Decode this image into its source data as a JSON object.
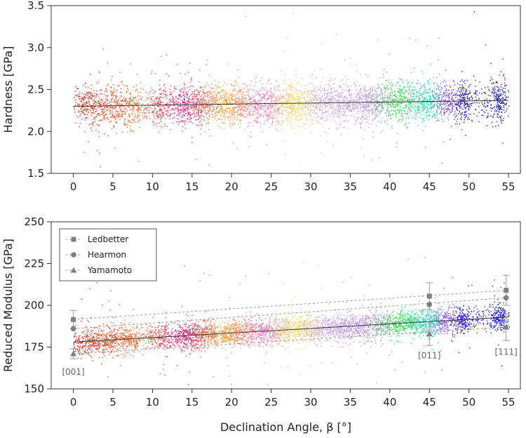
{
  "chart_data": [
    {
      "type": "scatter",
      "panel": "top",
      "ylabel": "Hardness [GPa]",
      "xlim": [
        -2.8,
        56.5
      ],
      "ylim": [
        1.5,
        3.5
      ],
      "xticks": [
        "0",
        "5",
        "10",
        "15",
        "20",
        "25",
        "30",
        "35",
        "40",
        "45",
        "50",
        "55"
      ],
      "yticks": [
        "1.5",
        "2.0",
        "2.5",
        "3.0",
        "3.5"
      ],
      "grid": false,
      "point_cloud": {
        "description_values": "dense per-indent scatter colored by declination angle",
        "x_range": [
          0,
          55
        ],
        "y_center_at_x0": 2.3,
        "y_center_at_x55": 2.37,
        "y_spread": 0.12
      },
      "fit_line": {
        "x": [
          0,
          55
        ],
        "y": [
          2.3,
          2.37
        ]
      }
    },
    {
      "type": "scatter",
      "panel": "bottom",
      "xlabel": "Declination Angle, β [°]",
      "ylabel": "Reduced Modulus [GPa]",
      "xlim": [
        -2.8,
        56.5
      ],
      "ylim": [
        150,
        250
      ],
      "xticks": [
        "0",
        "5",
        "10",
        "15",
        "20",
        "25",
        "30",
        "35",
        "40",
        "45",
        "50",
        "55"
      ],
      "yticks": [
        "150",
        "175",
        "200",
        "225",
        "250"
      ],
      "grid": false,
      "legend_position": "top-left",
      "point_cloud": {
        "x_range": [
          0,
          55
        ],
        "y_center_at_x0": 178,
        "y_center_at_x55": 193,
        "y_spread": 4
      },
      "fit_line": {
        "x": [
          0,
          55
        ],
        "y": [
          178,
          193
        ]
      },
      "series": [
        {
          "name": "Ledbetter",
          "marker": "square",
          "x": [
            0,
            45,
            54.7
          ],
          "y": [
            191.5,
            205.5,
            209
          ],
          "err": [
            5.5,
            8,
            9
          ]
        },
        {
          "name": "Hearmon",
          "marker": "circle",
          "x": [
            0,
            45,
            54.7
          ],
          "y": [
            186,
            200.5,
            204.5
          ],
          "err": [
            0,
            0,
            0
          ]
        },
        {
          "name": "Yamamoto",
          "marker": "triangle",
          "x": [
            0,
            45,
            54.7
          ],
          "y": [
            171,
            183,
            187
          ],
          "err": [
            3,
            7,
            8
          ]
        }
      ],
      "annotations": [
        {
          "text": "[001]",
          "x": 0,
          "y": 160
        },
        {
          "text": "[011]",
          "x": 45,
          "y": 170
        },
        {
          "text": "[111]",
          "x": 54.7,
          "y": 172
        }
      ]
    }
  ]
}
